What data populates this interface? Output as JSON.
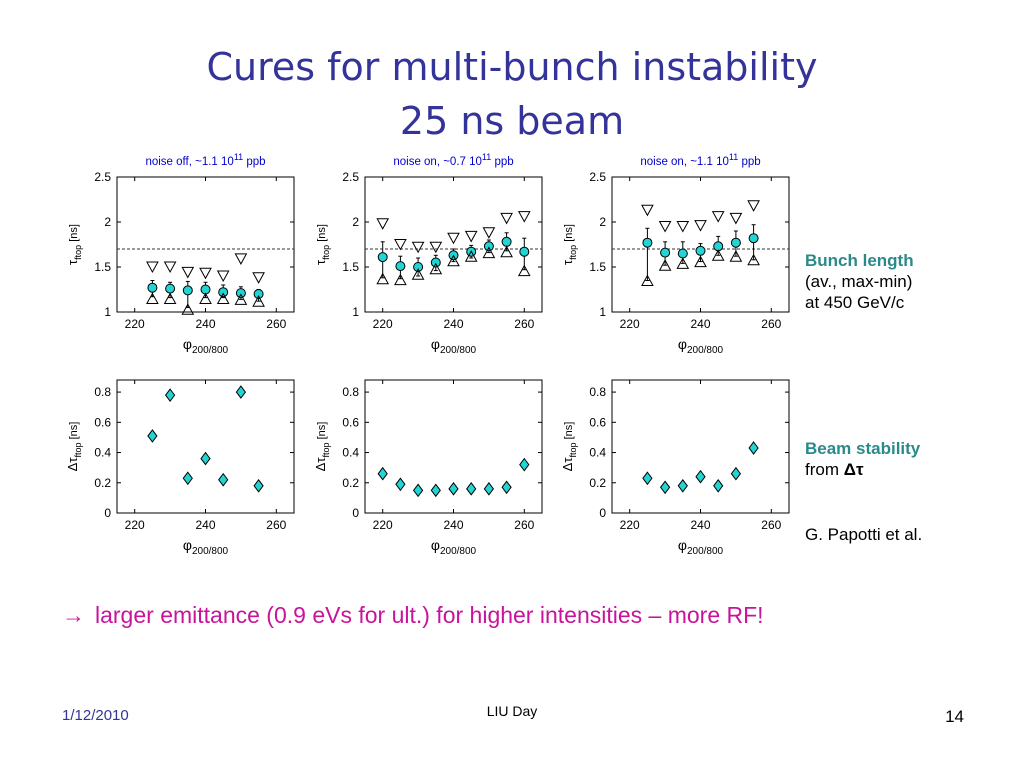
{
  "slide": {
    "title_line1": "Cures for multi-bunch instability",
    "title_line2": "25 ns beam",
    "side_bunch_title": "Bunch length",
    "side_bunch_line2": "(av., max-min)",
    "side_bunch_line3": "at 450 GeV/c",
    "side_stability_title": "Beam stability",
    "side_stability_from": "from ",
    "side_stability_symbol": "Δτ",
    "side_author": "G. Papotti et al.",
    "conclusion_arrow": "→",
    "conclusion_text": "larger emittance (0.9 eVs for ult.) for higher intensities – more RF!",
    "footer_date": "1/12/2010",
    "footer_center": "LIU Day",
    "footer_page": "14"
  },
  "colors": {
    "title": "#33339a",
    "marker_fill": "#22d4d4",
    "conclusion": "#c8139a",
    "side_highlight": "#2a8a8a",
    "axis_title": "#0000cc"
  },
  "chart_data": [
    {
      "type": "scatter",
      "title_main": "noise off, ~1.1 10",
      "title_exp": "11",
      "title_tail": " ppb",
      "xlabel_sym": "φ",
      "xlabel_sub": "200/800",
      "ylabel_sym": "τ",
      "ylabel_sub": "ftop",
      "ylabel_unit": "[ns]",
      "xlim": [
        215,
        265
      ],
      "ylim": [
        1,
        2.5
      ],
      "xticks": [
        220,
        240,
        260
      ],
      "yticks": [
        1,
        1.5,
        2,
        2.5
      ],
      "ytick_labels": [
        "1",
        "1.5",
        "2",
        "2.5"
      ],
      "reference_line": 1.7,
      "x": [
        225,
        230,
        235,
        240,
        245,
        250,
        255
      ],
      "series": [
        {
          "type": "triangle-down",
          "values": [
            1.5,
            1.5,
            1.44,
            1.43,
            1.4,
            1.59,
            1.38
          ]
        },
        {
          "type": "circle-errorbar",
          "values": [
            1.27,
            1.26,
            1.24,
            1.25,
            1.22,
            1.21,
            1.2
          ],
          "errlow": [
            1.17,
            1.16,
            1.05,
            1.16,
            1.16,
            1.14,
            1.12
          ],
          "errhigh": [
            1.35,
            1.33,
            1.34,
            1.33,
            1.3,
            1.28,
            1.25
          ]
        },
        {
          "type": "triangle-up",
          "values": [
            1.15,
            1.15,
            1.03,
            1.15,
            1.15,
            1.14,
            1.12
          ]
        }
      ]
    },
    {
      "type": "scatter",
      "title_main": "noise on, ~0.7 10",
      "title_exp": "11",
      "title_tail": " ppb",
      "xlabel_sym": "φ",
      "xlabel_sub": "200/800",
      "ylabel_sym": "τ",
      "ylabel_sub": "ftop",
      "ylabel_unit": "[ns]",
      "xlim": [
        215,
        265
      ],
      "ylim": [
        1,
        2.5
      ],
      "xticks": [
        220,
        240,
        260
      ],
      "yticks": [
        1,
        1.5,
        2,
        2.5
      ],
      "ytick_labels": [
        "1",
        "1.5",
        "2",
        "2.5"
      ],
      "reference_line": 1.7,
      "x": [
        220,
        225,
        230,
        235,
        240,
        245,
        250,
        255,
        260
      ],
      "series": [
        {
          "type": "triangle-down",
          "values": [
            1.98,
            1.75,
            1.72,
            1.72,
            1.82,
            1.84,
            1.88,
            2.04,
            2.06
          ]
        },
        {
          "type": "circle-errorbar",
          "values": [
            1.61,
            1.51,
            1.5,
            1.55,
            1.63,
            1.67,
            1.73,
            1.78,
            1.67
          ],
          "errlow": [
            1.38,
            1.37,
            1.4,
            1.46,
            1.56,
            1.6,
            1.66,
            1.68,
            1.47
          ],
          "errhigh": [
            1.78,
            1.62,
            1.6,
            1.63,
            1.7,
            1.74,
            1.8,
            1.88,
            1.82
          ]
        },
        {
          "type": "triangle-up",
          "values": [
            1.37,
            1.36,
            1.42,
            1.48,
            1.57,
            1.62,
            1.66,
            1.67,
            1.46
          ]
        }
      ]
    },
    {
      "type": "scatter",
      "title_main": "noise on, ~1.1 10",
      "title_exp": "11",
      "title_tail": " ppb",
      "xlabel_sym": "φ",
      "xlabel_sub": "200/800",
      "ylabel_sym": "τ",
      "ylabel_sub": "ftop",
      "ylabel_unit": "[ns]",
      "xlim": [
        215,
        265
      ],
      "ylim": [
        1,
        2.5
      ],
      "xticks": [
        220,
        240,
        260
      ],
      "yticks": [
        1,
        1.5,
        2,
        2.5
      ],
      "ytick_labels": [
        "1",
        "1.5",
        "2",
        "2.5"
      ],
      "reference_line": 1.7,
      "x": [
        225,
        230,
        235,
        240,
        245,
        250,
        255
      ],
      "series": [
        {
          "type": "triangle-down",
          "values": [
            2.13,
            1.95,
            1.95,
            1.96,
            2.06,
            2.04,
            2.18
          ]
        },
        {
          "type": "circle-errorbar",
          "values": [
            1.77,
            1.66,
            1.65,
            1.68,
            1.73,
            1.77,
            1.82
          ],
          "errlow": [
            1.35,
            1.52,
            1.54,
            1.56,
            1.63,
            1.62,
            1.58
          ],
          "errhigh": [
            1.93,
            1.78,
            1.78,
            1.76,
            1.84,
            1.9,
            1.97
          ]
        },
        {
          "type": "triangle-up",
          "values": [
            1.35,
            1.52,
            1.54,
            1.56,
            1.63,
            1.62,
            1.58
          ]
        }
      ]
    },
    {
      "type": "scatter",
      "xlabel_sym": "φ",
      "xlabel_sub": "200/800",
      "ylabel_sym": "Δτ",
      "ylabel_sub": "ftop",
      "ylabel_unit": "[ns]",
      "xlim": [
        215,
        265
      ],
      "ylim": [
        0,
        0.88
      ],
      "xticks": [
        220,
        240,
        260
      ],
      "yticks": [
        0,
        0.2,
        0.4,
        0.6,
        0.8
      ],
      "ytick_labels": [
        "0",
        "0.2",
        "0.4",
        "0.6",
        "0.8"
      ],
      "x": [
        225,
        230,
        235,
        240,
        245,
        250,
        255
      ],
      "series": [
        {
          "type": "diamond",
          "values": [
            0.51,
            0.78,
            0.23,
            0.36,
            0.22,
            0.8,
            0.18
          ]
        }
      ]
    },
    {
      "type": "scatter",
      "xlabel_sym": "φ",
      "xlabel_sub": "200/800",
      "ylabel_sym": "Δτ",
      "ylabel_sub": "ftop",
      "ylabel_unit": "[ns]",
      "xlim": [
        215,
        265
      ],
      "ylim": [
        0,
        0.88
      ],
      "xticks": [
        220,
        240,
        260
      ],
      "yticks": [
        0,
        0.2,
        0.4,
        0.6,
        0.8
      ],
      "ytick_labels": [
        "0",
        "0.2",
        "0.4",
        "0.6",
        "0.8"
      ],
      "x": [
        220,
        225,
        230,
        235,
        240,
        245,
        250,
        255,
        260
      ],
      "series": [
        {
          "type": "diamond",
          "values": [
            0.26,
            0.19,
            0.15,
            0.15,
            0.16,
            0.16,
            0.16,
            0.17,
            0.32
          ]
        }
      ]
    },
    {
      "type": "scatter",
      "xlabel_sym": "φ",
      "xlabel_sub": "200/800",
      "ylabel_sym": "Δτ",
      "ylabel_sub": "ftop",
      "ylabel_unit": "[ns]",
      "xlim": [
        215,
        265
      ],
      "ylim": [
        0,
        0.88
      ],
      "xticks": [
        220,
        240,
        260
      ],
      "yticks": [
        0,
        0.2,
        0.4,
        0.6,
        0.8
      ],
      "ytick_labels": [
        "0",
        "0.2",
        "0.4",
        "0.6",
        "0.8"
      ],
      "x": [
        225,
        230,
        235,
        240,
        245,
        250,
        255
      ],
      "series": [
        {
          "type": "diamond",
          "values": [
            0.23,
            0.17,
            0.18,
            0.24,
            0.18,
            0.26,
            0.43
          ]
        }
      ]
    }
  ]
}
